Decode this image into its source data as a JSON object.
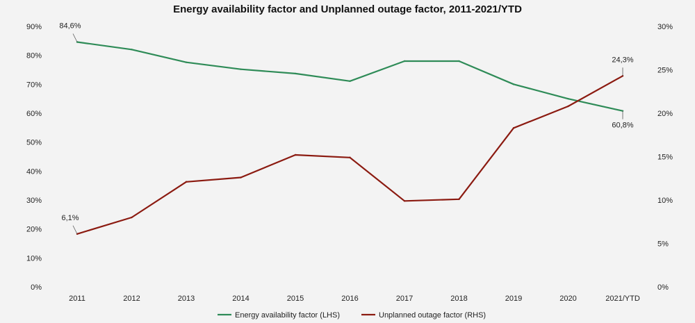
{
  "chart_data": {
    "type": "line",
    "title": "Energy availability factor and Unplanned outage factor, 2011-2021/YTD",
    "categories": [
      "2011",
      "2012",
      "2013",
      "2014",
      "2015",
      "2016",
      "2017",
      "2018",
      "2019",
      "2020",
      "2021/YTD"
    ],
    "y_left": {
      "ylim": [
        0,
        90
      ],
      "ticks": [
        "0%",
        "10%",
        "20%",
        "30%",
        "40%",
        "50%",
        "60%",
        "70%",
        "80%",
        "90%"
      ]
    },
    "y_right": {
      "ylim": [
        0,
        30
      ],
      "ticks": [
        "0%",
        "5%",
        "10%",
        "15%",
        "20%",
        "25%",
        "30%"
      ]
    },
    "series": [
      {
        "name": "Energy availability factor (LHS)",
        "axis": "left",
        "color": "#2e8b57",
        "values": [
          84.6,
          82,
          77.6,
          75.2,
          73.7,
          71.1,
          78,
          78,
          70,
          65,
          60.8
        ]
      },
      {
        "name": "Unplanned outage factor (RHS)",
        "axis": "right",
        "color": "#8b1a10",
        "values": [
          6.1,
          8,
          12.1,
          12.6,
          15.2,
          14.9,
          9.9,
          10.1,
          18.3,
          20.8,
          24.3
        ]
      }
    ],
    "data_labels": [
      {
        "series": 0,
        "index": 0,
        "text": "84,6%"
      },
      {
        "series": 0,
        "index": 10,
        "text": "60,8%"
      },
      {
        "series": 1,
        "index": 0,
        "text": "6,1%"
      },
      {
        "series": 1,
        "index": 10,
        "text": "24,3%"
      }
    ],
    "grid": false,
    "legend_position": "bottom"
  }
}
